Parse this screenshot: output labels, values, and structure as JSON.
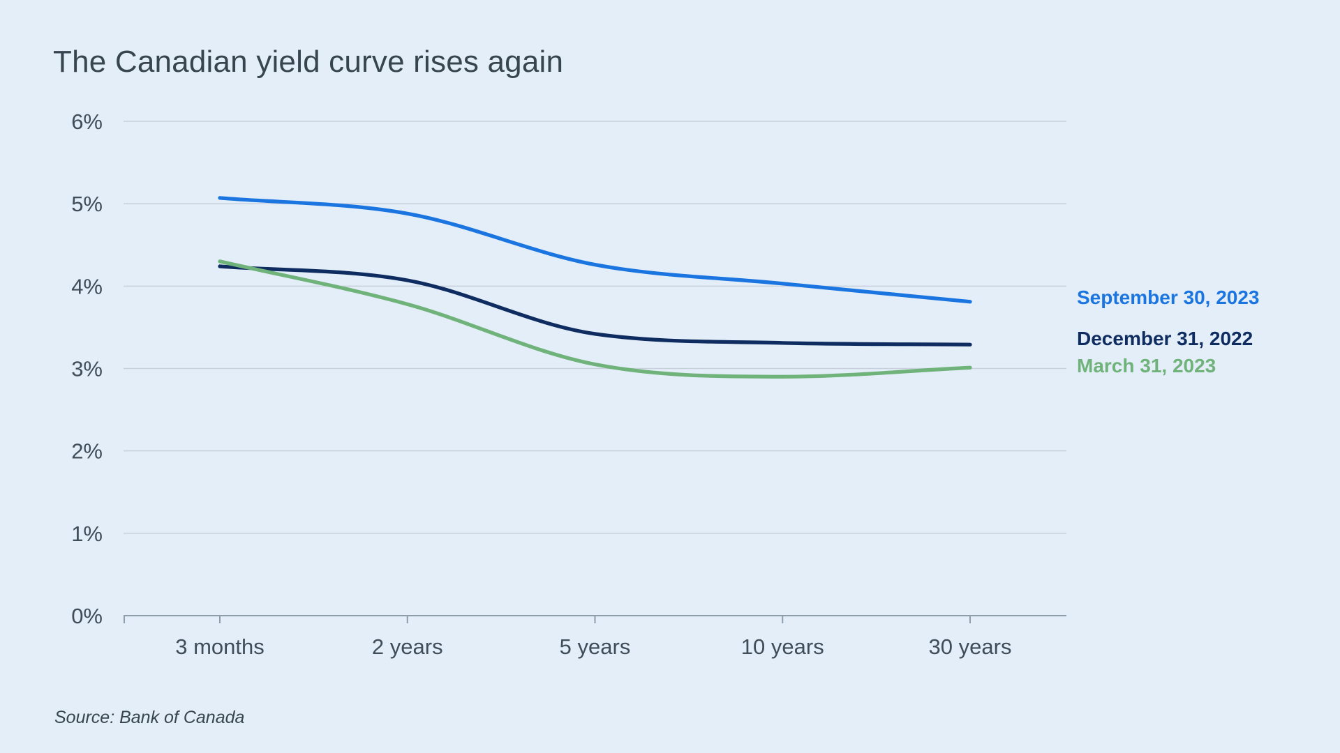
{
  "title": "The Canadian yield curve rises again",
  "source_note": "Source: Bank of Canada",
  "colors": {
    "background": "#E4EEF9",
    "title_text": "#37454F",
    "tick_label": "#3E4D57",
    "gridline": "#C7D0DA",
    "axis": "#8E9DAA"
  },
  "chart_data": {
    "type": "line",
    "title": "The Canadian yield curve rises again",
    "categories": [
      "3 months",
      "2 years",
      "5 years",
      "10 years",
      "30 years"
    ],
    "xlabel": "",
    "ylabel": "",
    "ylim": [
      0,
      6
    ],
    "y_ticks": [
      "0%",
      "1%",
      "2%",
      "3%",
      "4%",
      "5%",
      "6%"
    ],
    "grid": true,
    "legend_position": "right",
    "series": [
      {
        "name": "September 30, 2023",
        "color": "#1B75E0",
        "values": [
          5.07,
          4.88,
          4.26,
          4.03,
          3.81
        ]
      },
      {
        "name": "December 31, 2022",
        "color": "#0E2C60",
        "values": [
          4.24,
          4.07,
          3.42,
          3.31,
          3.29
        ]
      },
      {
        "name": "March 31, 2023",
        "color": "#70B37A",
        "values": [
          4.3,
          3.78,
          3.05,
          2.9,
          3.01
        ]
      }
    ]
  }
}
